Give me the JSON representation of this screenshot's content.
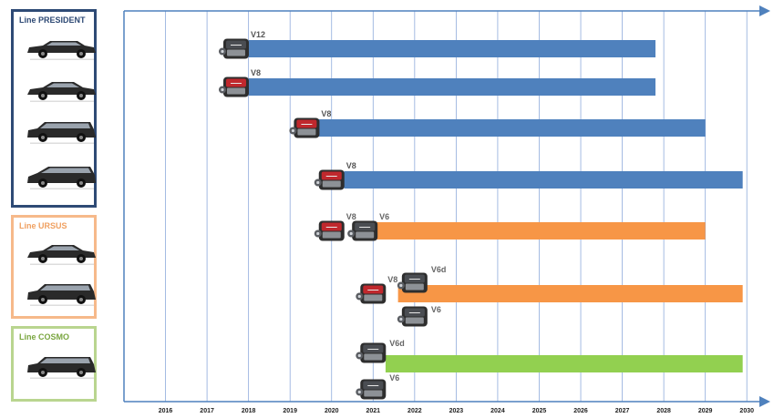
{
  "lines": [
    {
      "title": "Line PRESIDENT",
      "color": "#2e4a75",
      "car_icons": [
        "limousine-icon",
        "sedan-icon",
        "suv-icon",
        "minivan-icon"
      ]
    },
    {
      "title": "Line URSUS",
      "color": "#f6b98a",
      "car_icons": [
        "sedan-icon",
        "suv-icon"
      ]
    },
    {
      "title": "Line COSMO",
      "color": "#b9d58f",
      "car_icons": [
        "suv-icon"
      ]
    }
  ],
  "chart_data": {
    "type": "bar",
    "orientation": "horizontal-timeline",
    "x_ticks": [
      "2016",
      "2017",
      "2018",
      "2019",
      "2020",
      "2021",
      "2022",
      "2023",
      "2024",
      "2025",
      "2026",
      "2027",
      "2028",
      "2029",
      "2030"
    ],
    "xlim": [
      2015.0,
      2030.5
    ],
    "grid": true,
    "bars": [
      {
        "start": 2018.0,
        "end": 2027.8,
        "color": "#4f81bd",
        "engines": [
          {
            "label": "V12",
            "at": 2017.7
          }
        ]
      },
      {
        "start": 2018.0,
        "end": 2027.8,
        "color": "#4f81bd",
        "engines": [
          {
            "label": "V8",
            "at": 2017.7
          }
        ]
      },
      {
        "start": 2019.6,
        "end": 2029.0,
        "color": "#4f81bd",
        "engines": [
          {
            "label": "V8",
            "at": 2019.4
          }
        ]
      },
      {
        "start": 2020.3,
        "end": 2029.9,
        "color": "#4f81bd",
        "engines": [
          {
            "label": "V8",
            "at": 2020.0
          }
        ]
      },
      {
        "start": 2020.7,
        "end": 2029.0,
        "color": "#f79646",
        "engines": [
          {
            "label": "V8",
            "at": 2020.0
          },
          {
            "label": "V6",
            "at": 2020.8
          }
        ]
      },
      {
        "start": 2021.6,
        "end": 2029.9,
        "color": "#f79646",
        "engines": [
          {
            "label": "V8",
            "at": 2021.0
          },
          {
            "label": "V6d",
            "at": 2022.0
          },
          {
            "label": "V6",
            "at": 2022.0
          }
        ]
      },
      {
        "start": 2021.3,
        "end": 2029.9,
        "color": "#92d050",
        "engines": [
          {
            "label": "V6d",
            "at": 2021.0
          },
          {
            "label": "V6",
            "at": 2021.0
          }
        ]
      }
    ]
  }
}
